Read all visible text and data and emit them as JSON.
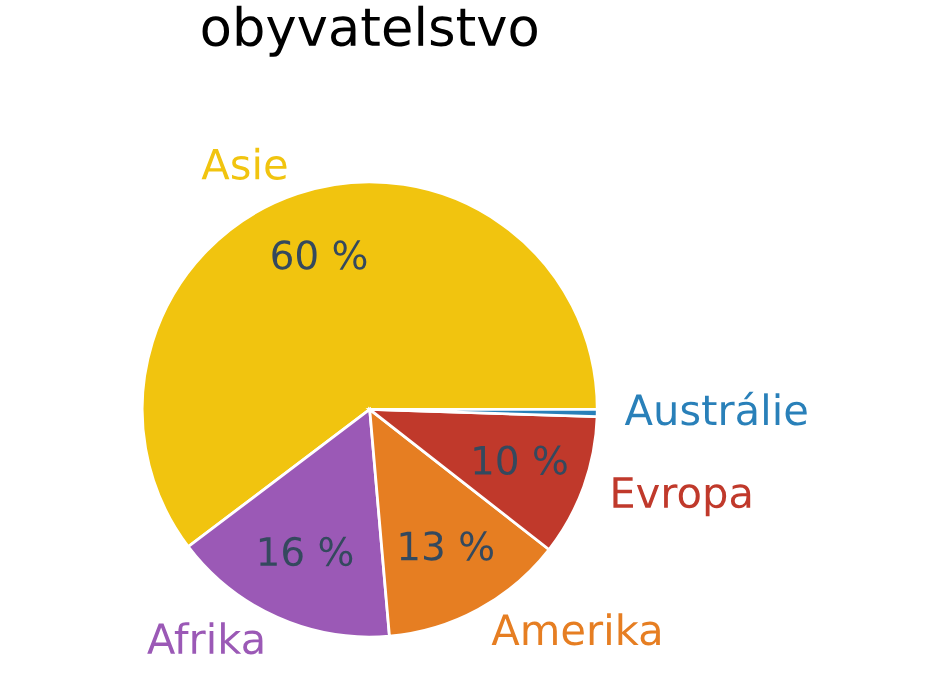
{
  "chart_data": {
    "type": "pie",
    "title": "obyvatelstvo",
    "categories": [
      "Asie",
      "Afrika",
      "Amerika",
      "Evropa",
      "Austrálie"
    ],
    "values": [
      60,
      16,
      13,
      10,
      0.5
    ],
    "value_labels": [
      "60 %",
      "16 %",
      "13 %",
      "10 %",
      null
    ],
    "colors": [
      "#f1c40f",
      "#9b59b6",
      "#e67e22",
      "#c0392b",
      "#2980b9"
    ],
    "legend": false
  }
}
